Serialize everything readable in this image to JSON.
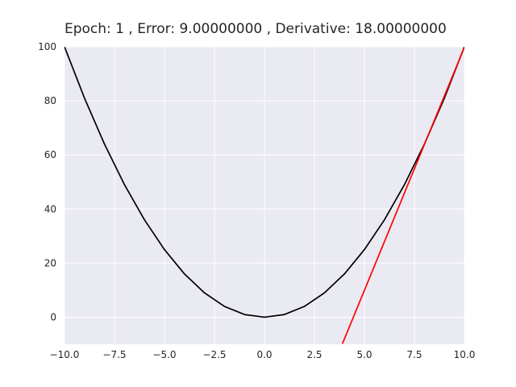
{
  "chart_data": {
    "type": "line",
    "title": "Epoch: 1 , Error: 9.00000000 , Derivative: 18.00000000",
    "xlabel": "",
    "ylabel": "",
    "xlim": [
      -10,
      10
    ],
    "ylim": [
      -10,
      100
    ],
    "grid": true,
    "background_color": "#eaeaf2",
    "grid_color": "#ffffff",
    "x_ticks": [
      -10,
      -7.5,
      -5,
      -2.5,
      0,
      2.5,
      5,
      7.5,
      10
    ],
    "x_tick_labels": [
      "−10.0",
      "−7.5",
      "−5.0",
      "−2.5",
      "0.0",
      "2.5",
      "5.0",
      "7.5",
      "10.0"
    ],
    "y_ticks": [
      0,
      20,
      40,
      60,
      80,
      100
    ],
    "y_tick_labels": [
      "0",
      "20",
      "40",
      "60",
      "80",
      "100"
    ],
    "series": [
      {
        "color": "#000000",
        "x": [
          -10,
          -9,
          -8,
          -7,
          -6,
          -5,
          -4,
          -3,
          -2,
          -1,
          0,
          1,
          2,
          3,
          4,
          5,
          6,
          7,
          8,
          9,
          10
        ],
        "y": [
          100,
          81,
          64,
          49,
          36,
          25,
          16,
          9,
          4,
          1,
          0,
          1,
          4,
          9,
          16,
          25,
          36,
          49,
          64,
          81,
          100
        ]
      },
      {
        "color": "#ff0000",
        "x": [
          3.9,
          10
        ],
        "y": [
          -9.8,
          99.8
        ]
      }
    ]
  }
}
